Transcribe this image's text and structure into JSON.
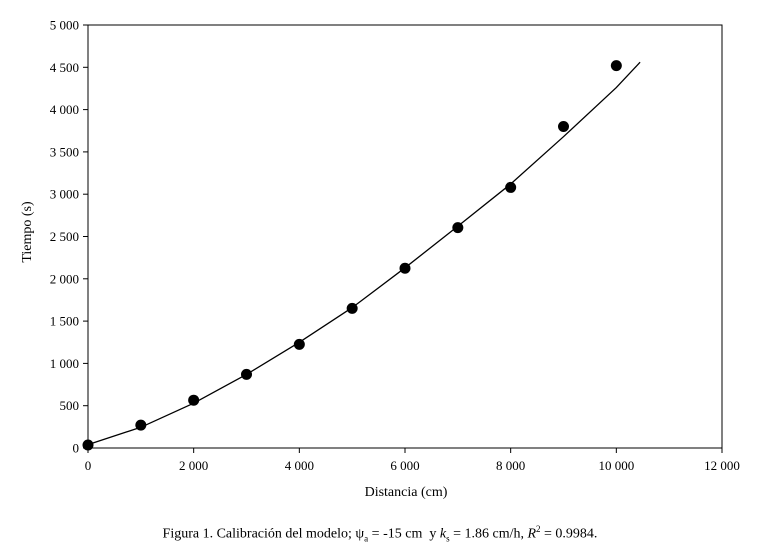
{
  "chart_data": {
    "type": "scatter",
    "xlabel": "Distancia (cm)",
    "ylabel": "Tiempo (s)",
    "xlim": [
      0,
      12000
    ],
    "ylim": [
      0,
      5000
    ],
    "x_ticks": [
      "0",
      "2 000",
      "4 000",
      "6 000",
      "8 000",
      "10 000",
      "12 000"
    ],
    "y_ticks": [
      "0",
      "500",
      "1 000",
      "1 500",
      "2 000",
      "2 500",
      "3 000",
      "3 500",
      "4 000",
      "4 500",
      "5 000"
    ],
    "grid": false,
    "legend": "none",
    "series": [
      {
        "kind": "points",
        "x": [
          0,
          1000,
          2000,
          3000,
          4000,
          5000,
          6000,
          7000,
          8000,
          9000,
          10000
        ],
        "y": [
          35,
          270,
          565,
          870,
          1225,
          1650,
          2125,
          2605,
          3080,
          3800,
          4520
        ]
      },
      {
        "kind": "fitted-curve",
        "x": [
          0,
          1000,
          2000,
          3000,
          4000,
          5000,
          6000,
          7000,
          8000,
          9000,
          10000,
          10450
        ],
        "y": [
          40,
          245,
          530,
          870,
          1250,
          1660,
          2130,
          2620,
          3120,
          3680,
          4260,
          4560
        ]
      }
    ],
    "caption": {
      "prefix": "Figura 1. Calibración del modelo; ",
      "psi": "ψ",
      "psi_sub": "a",
      "psi_value": " = -15 cm  y ",
      "k": "k",
      "k_sub": "s",
      "k_value": " = 1.86 cm/h, ",
      "r": "R",
      "r_sup": "2",
      "r_value": " = 0.9984."
    }
  }
}
